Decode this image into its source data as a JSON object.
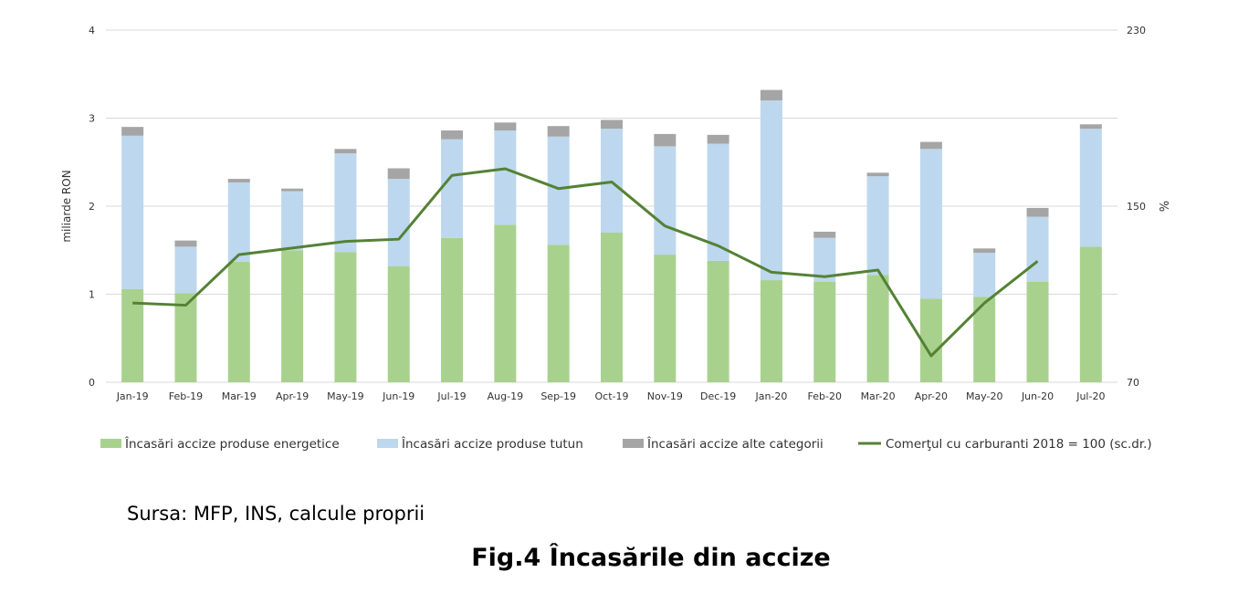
{
  "chart_data": {
    "type": "bar",
    "stacked": true,
    "categories": [
      "Jan-19",
      "Feb-19",
      "Mar-19",
      "Apr-19",
      "May-19",
      "Jun-19",
      "Jul-19",
      "Aug-19",
      "Sep-19",
      "Oct-19",
      "Nov-19",
      "Dec-19",
      "Jan-20",
      "Feb-20",
      "Mar-20",
      "Apr-20",
      "May-20",
      "Jun-20",
      "Jul-20"
    ],
    "ylabel": "miliarde RON",
    "ylim": [
      0,
      4
    ],
    "yticks": [
      "0",
      "1",
      "2",
      "3",
      "4"
    ],
    "y2label": "%",
    "y2lim": [
      70,
      230
    ],
    "y2ticks": [
      "70",
      "150",
      "230"
    ],
    "grid": true,
    "legend_position": "bottom",
    "series": [
      {
        "name": "Încasări accize produse energetice",
        "kind": "bar",
        "axis": "left",
        "color": "#a9d18e",
        "values": [
          1.06,
          1.01,
          1.37,
          1.5,
          1.48,
          1.32,
          1.64,
          1.79,
          1.56,
          1.7,
          1.45,
          1.38,
          1.16,
          1.14,
          1.22,
          0.95,
          0.97,
          1.14,
          1.54
        ]
      },
      {
        "name": "Încasări accize produse tutun",
        "kind": "bar",
        "axis": "left",
        "color": "#bdd7ee",
        "values": [
          1.74,
          0.53,
          0.9,
          0.67,
          1.12,
          0.99,
          1.12,
          1.07,
          1.23,
          1.18,
          1.23,
          1.33,
          2.04,
          0.5,
          1.12,
          1.7,
          0.5,
          0.74,
          1.34
        ]
      },
      {
        "name": "Încasări accize alte categorii",
        "kind": "bar",
        "axis": "left",
        "color": "#a5a5a5",
        "values": [
          0.1,
          0.07,
          0.04,
          0.03,
          0.05,
          0.12,
          0.1,
          0.09,
          0.12,
          0.1,
          0.14,
          0.1,
          0.12,
          0.07,
          0.04,
          0.08,
          0.05,
          0.1,
          0.05
        ]
      },
      {
        "name": "Comerţul cu carburanti 2018 = 100 (sc.dr.)",
        "kind": "line",
        "axis": "right",
        "color": "#548235",
        "values": [
          106,
          105,
          128,
          131,
          134,
          135,
          164,
          167,
          158,
          161,
          141,
          132,
          120,
          118,
          121,
          82,
          106,
          125,
          null
        ]
      }
    ]
  },
  "source_text": "Sursa: MFP, INS, calcule proprii",
  "figure_title": "Fig.4 Încasările din accize"
}
